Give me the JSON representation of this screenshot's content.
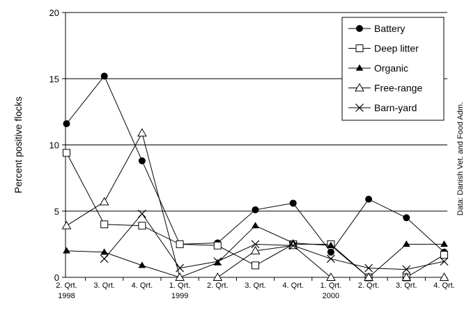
{
  "chart_data": {
    "type": "line",
    "categories": [
      [
        "2. Qrt.",
        "1998"
      ],
      [
        "3. Qrt.",
        ""
      ],
      [
        "4. Qrt.",
        ""
      ],
      [
        "1. Qrt.",
        "1999"
      ],
      [
        "2. Qrt.",
        ""
      ],
      [
        "3. Qrt.",
        ""
      ],
      [
        "4. Qrt.",
        ""
      ],
      [
        "1. Qrt.",
        "2000"
      ],
      [
        "2. Qrt.",
        ""
      ],
      [
        "3. Qrt.",
        ""
      ],
      [
        "4. Qrt.",
        ""
      ]
    ],
    "ylabel": "Percent positive flocks",
    "xlabel": "",
    "ylim": [
      0,
      20
    ],
    "yticks": [
      0,
      5,
      10,
      15,
      20
    ],
    "grid": "horizontal",
    "legend_position": "top-right",
    "source_note": "Data: Danish Vet. and Food Adm.",
    "series": [
      {
        "name": "Battery",
        "marker": "filled-circle",
        "values": [
          11.6,
          15.2,
          8.8,
          2.5,
          2.6,
          5.1,
          5.6,
          1.9,
          5.9,
          4.5,
          1.9
        ]
      },
      {
        "name": "Deep litter",
        "marker": "open-square",
        "values": [
          9.4,
          4.0,
          3.9,
          2.5,
          2.4,
          0.9,
          2.5,
          2.5,
          0.0,
          0.0,
          1.7
        ]
      },
      {
        "name": "Organic",
        "marker": "filled-triangle",
        "values": [
          2.0,
          1.9,
          0.9,
          0.0,
          1.1,
          3.9,
          2.6,
          2.4,
          0.0,
          2.5,
          2.5
        ]
      },
      {
        "name": "Free-range",
        "marker": "open-triangle",
        "values": [
          3.9,
          5.7,
          10.9,
          0.0,
          0.0,
          2.0,
          2.4,
          0.0,
          0.0,
          0.0,
          0.0
        ]
      },
      {
        "name": "Barn-yard",
        "marker": "x",
        "values": [
          null,
          1.4,
          4.8,
          0.7,
          1.2,
          2.5,
          2.4,
          1.4,
          0.7,
          0.6,
          1.2
        ]
      }
    ]
  }
}
